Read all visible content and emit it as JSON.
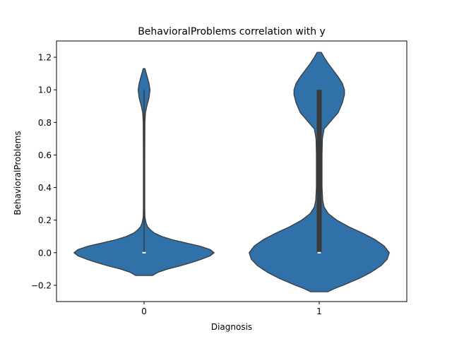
{
  "chart_data": {
    "type": "violin",
    "title": "BehavioralProblems correlation with y",
    "xlabel": "Diagnosis",
    "ylabel": "BehavioralProblems",
    "categories": [
      "0",
      "1"
    ],
    "ylim": [
      -0.3,
      1.3
    ],
    "yticks": [
      -0.2,
      0.0,
      0.2,
      0.4,
      0.6,
      0.8,
      1.0,
      1.2
    ],
    "ytick_labels": [
      "−0.2",
      "0.0",
      "0.2",
      "0.4",
      "0.6",
      "0.8",
      "1.0",
      "1.2"
    ],
    "grid": false,
    "fill_color": "#2f71a8",
    "edge_color": "#3a3a3a",
    "violins": [
      {
        "category": "0",
        "median": 0.0,
        "q1": 0.0,
        "q3": 0.0,
        "min": 0.0,
        "max": 1.0,
        "density": [
          [
            -0.14,
            0.12
          ],
          [
            -0.12,
            0.2
          ],
          [
            -0.1,
            0.34
          ],
          [
            -0.08,
            0.52
          ],
          [
            -0.06,
            0.68
          ],
          [
            -0.04,
            0.82
          ],
          [
            -0.02,
            0.94
          ],
          [
            0.0,
            1.0
          ],
          [
            0.02,
            0.94
          ],
          [
            0.04,
            0.8
          ],
          [
            0.06,
            0.6
          ],
          [
            0.08,
            0.4
          ],
          [
            0.1,
            0.25
          ],
          [
            0.12,
            0.15
          ],
          [
            0.14,
            0.09
          ],
          [
            0.16,
            0.05
          ],
          [
            0.18,
            0.03
          ],
          [
            0.2,
            0.02
          ],
          [
            0.22,
            0.012
          ],
          [
            0.26,
            0.01
          ],
          [
            0.4,
            0.01
          ],
          [
            0.6,
            0.01
          ],
          [
            0.8,
            0.012
          ],
          [
            0.86,
            0.02
          ],
          [
            0.9,
            0.04
          ],
          [
            0.95,
            0.07
          ],
          [
            1.0,
            0.085
          ],
          [
            1.04,
            0.07
          ],
          [
            1.08,
            0.045
          ],
          [
            1.11,
            0.025
          ],
          [
            1.13,
            0.012
          ]
        ]
      },
      {
        "category": "1",
        "median": 0.0,
        "q1": 0.0,
        "q3": 1.0,
        "min": 0.0,
        "max": 1.0,
        "density": [
          [
            -0.24,
            0.12
          ],
          [
            -0.22,
            0.22
          ],
          [
            -0.2,
            0.34
          ],
          [
            -0.16,
            0.56
          ],
          [
            -0.12,
            0.74
          ],
          [
            -0.08,
            0.88
          ],
          [
            -0.04,
            0.97
          ],
          [
            0.0,
            1.0
          ],
          [
            0.04,
            0.93
          ],
          [
            0.08,
            0.8
          ],
          [
            0.12,
            0.62
          ],
          [
            0.16,
            0.42
          ],
          [
            0.2,
            0.25
          ],
          [
            0.24,
            0.13
          ],
          [
            0.28,
            0.07
          ],
          [
            0.32,
            0.05
          ],
          [
            0.4,
            0.04
          ],
          [
            0.6,
            0.04
          ],
          [
            0.7,
            0.045
          ],
          [
            0.76,
            0.07
          ],
          [
            0.8,
            0.15
          ],
          [
            0.86,
            0.27
          ],
          [
            0.92,
            0.33
          ],
          [
            0.97,
            0.36
          ],
          [
            1.0,
            0.36
          ],
          [
            1.04,
            0.33
          ],
          [
            1.08,
            0.27
          ],
          [
            1.12,
            0.2
          ],
          [
            1.16,
            0.13
          ],
          [
            1.2,
            0.07
          ],
          [
            1.23,
            0.03
          ]
        ]
      }
    ]
  }
}
